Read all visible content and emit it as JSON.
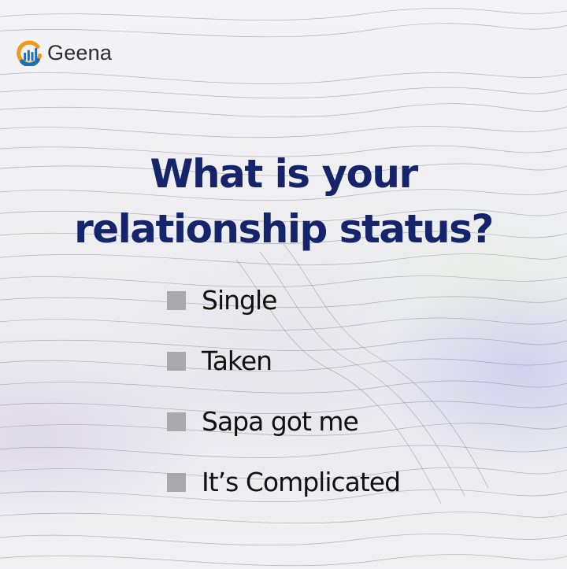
{
  "brand": {
    "name": "Geena",
    "icon": "geena-logo-icon",
    "colors": {
      "orange": "#f39a1e",
      "blue": "#1b6fb8"
    }
  },
  "question": {
    "line1": "What is your",
    "line2": "relationship status?",
    "color": "#15246b"
  },
  "options": [
    {
      "label": "Single"
    },
    {
      "label": "Taken"
    },
    {
      "label": "Sapa got me"
    },
    {
      "label": "It’s Complicated"
    }
  ],
  "checkbox_color": "#a9a9ab"
}
